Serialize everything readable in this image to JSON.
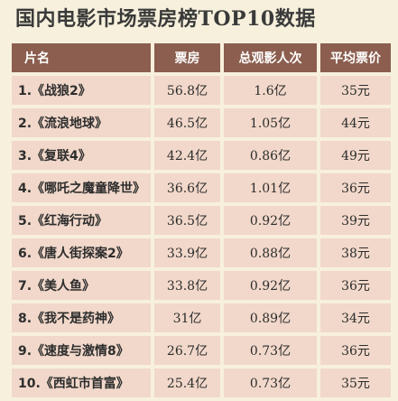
{
  "title": {
    "prefix": "国内电影市场票房榜",
    "latin": "TOP10",
    "suffix": "数据"
  },
  "columns": [
    "片名",
    "票房",
    "总观影人次",
    "平均票价"
  ],
  "rows": [
    {
      "name": "1.《战狼2》",
      "box_office": "56.8亿",
      "audience": "1.6亿",
      "avg_price": "35元"
    },
    {
      "name": "2.《流浪地球》",
      "box_office": "46.5亿",
      "audience": "1.05亿",
      "avg_price": "44元"
    },
    {
      "name": "3.《复联4》",
      "box_office": "42.4亿",
      "audience": "0.86亿",
      "avg_price": "49元"
    },
    {
      "name": "4.《哪吒之魔童降世》",
      "box_office": "36.6亿",
      "audience": "1.01亿",
      "avg_price": "36元"
    },
    {
      "name": "5.《红海行动》",
      "box_office": "36.5亿",
      "audience": "0.92亿",
      "avg_price": "39元"
    },
    {
      "name": "6.《唐人街探案2》",
      "box_office": "33.9亿",
      "audience": "0.88亿",
      "avg_price": "38元"
    },
    {
      "name": "7.《美人鱼》",
      "box_office": "33.8亿",
      "audience": "0.92亿",
      "avg_price": "36元"
    },
    {
      "name": "8.《我不是药神》",
      "box_office": "31亿",
      "audience": "0.89亿",
      "avg_price": "34元"
    },
    {
      "name": "9.《速度与激情8》",
      "box_office": "26.7亿",
      "audience": "0.73亿",
      "avg_price": "36元"
    },
    {
      "name": "10.《西虹市首富》",
      "box_office": "25.4亿",
      "audience": "0.73亿",
      "avg_price": "35元"
    }
  ],
  "colors": {
    "background": "#f7f0dc",
    "header": "#8b5e4f",
    "row": "#f1d8ca",
    "text": "#2d2d2d"
  }
}
